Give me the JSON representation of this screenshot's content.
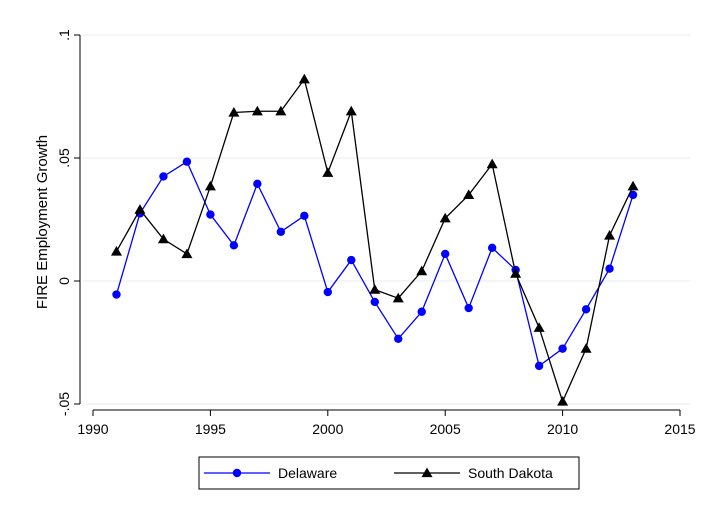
{
  "chart_data": {
    "type": "line",
    "title": "",
    "xlabel": "",
    "ylabel": "FIRE Employment Growth",
    "xlim": [
      1990,
      2015
    ],
    "ylim": [
      -0.05,
      0.1
    ],
    "xticks": [
      {
        "value": 1990,
        "label": "1990"
      },
      {
        "value": 1995,
        "label": "1995"
      },
      {
        "value": 2000,
        "label": "2000"
      },
      {
        "value": 2005,
        "label": "2005"
      },
      {
        "value": 2010,
        "label": "2010"
      },
      {
        "value": 2015,
        "label": "2015"
      }
    ],
    "yticks": [
      {
        "value": -0.05,
        "label": "-.05"
      },
      {
        "value": 0,
        "label": "0"
      },
      {
        "value": 0.05,
        "label": ".05"
      },
      {
        "value": 0.1,
        "label": ".1"
      }
    ],
    "grid": true,
    "legend_position": "bottom",
    "x": [
      1991,
      1992,
      1993,
      1994,
      1995,
      1996,
      1997,
      1998,
      1999,
      2000,
      2001,
      2002,
      2003,
      2004,
      2005,
      2006,
      2007,
      2008,
      2009,
      2010,
      2011,
      2012,
      2013
    ],
    "series": [
      {
        "name": "Delaware",
        "color": "#0000ff",
        "marker": "circle",
        "values": [
          -0.0055,
          0.0275,
          0.0425,
          0.0485,
          0.027,
          0.0145,
          0.0395,
          0.02,
          0.0265,
          -0.0045,
          0.0085,
          -0.0085,
          -0.0235,
          -0.0125,
          0.011,
          -0.011,
          0.0135,
          0.0045,
          -0.0345,
          -0.0275,
          -0.0115,
          0.005,
          0.035
        ]
      },
      {
        "name": "South Dakota",
        "color": "#000000",
        "marker": "triangle",
        "values": [
          0.012,
          0.029,
          0.017,
          0.011,
          0.0385,
          0.0685,
          0.069,
          0.069,
          0.082,
          0.044,
          0.069,
          -0.0035,
          -0.007,
          0.004,
          0.0255,
          0.035,
          0.0475,
          0.003,
          -0.019,
          -0.049,
          -0.0275,
          0.0185,
          0.0385
        ]
      }
    ]
  }
}
